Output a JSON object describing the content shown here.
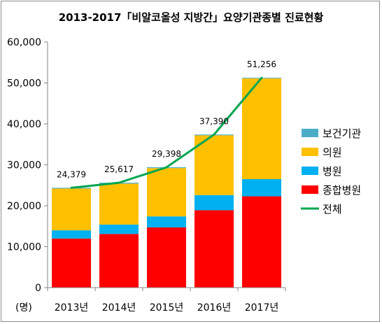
{
  "chart_data": {
    "type": "bar",
    "stacked": true,
    "title": "2013-2017「비알코올성 지방간」요양기관종별 진료현황",
    "unit_label": "(명)",
    "categories": [
      "2013년",
      "2014년",
      "2015년",
      "2016년",
      "2017년"
    ],
    "series": [
      {
        "name": "종합병원",
        "type": "bar",
        "color": "#ff0000",
        "values": [
          12000,
          13100,
          14700,
          18900,
          22300
        ]
      },
      {
        "name": "병원",
        "type": "bar",
        "color": "#00b0f0",
        "values": [
          2000,
          2300,
          2700,
          3700,
          4200
        ]
      },
      {
        "name": "의원",
        "type": "bar",
        "color": "#ffc000",
        "values": [
          10200,
          10000,
          11800,
          14600,
          24600
        ]
      },
      {
        "name": "보건기관",
        "type": "bar",
        "color": "#4bacc6",
        "values": [
          179,
          217,
          198,
          190,
          156
        ]
      },
      {
        "name": "전체",
        "type": "line",
        "color": "#00a651",
        "values": [
          24379,
          25617,
          29398,
          37390,
          51256
        ]
      }
    ],
    "data_labels": [
      "24,379",
      "25,617",
      "29,398",
      "37,390",
      "51,256"
    ],
    "y_ticks": [
      "0",
      "10,000",
      "20,000",
      "30,000",
      "40,000",
      "50,000",
      "60,000"
    ],
    "ylim": [
      0,
      60000
    ],
    "legend_order": [
      "보건기관",
      "의원",
      "병원",
      "종합병원",
      "전체"
    ],
    "legend_position": "right",
    "grid": false
  }
}
